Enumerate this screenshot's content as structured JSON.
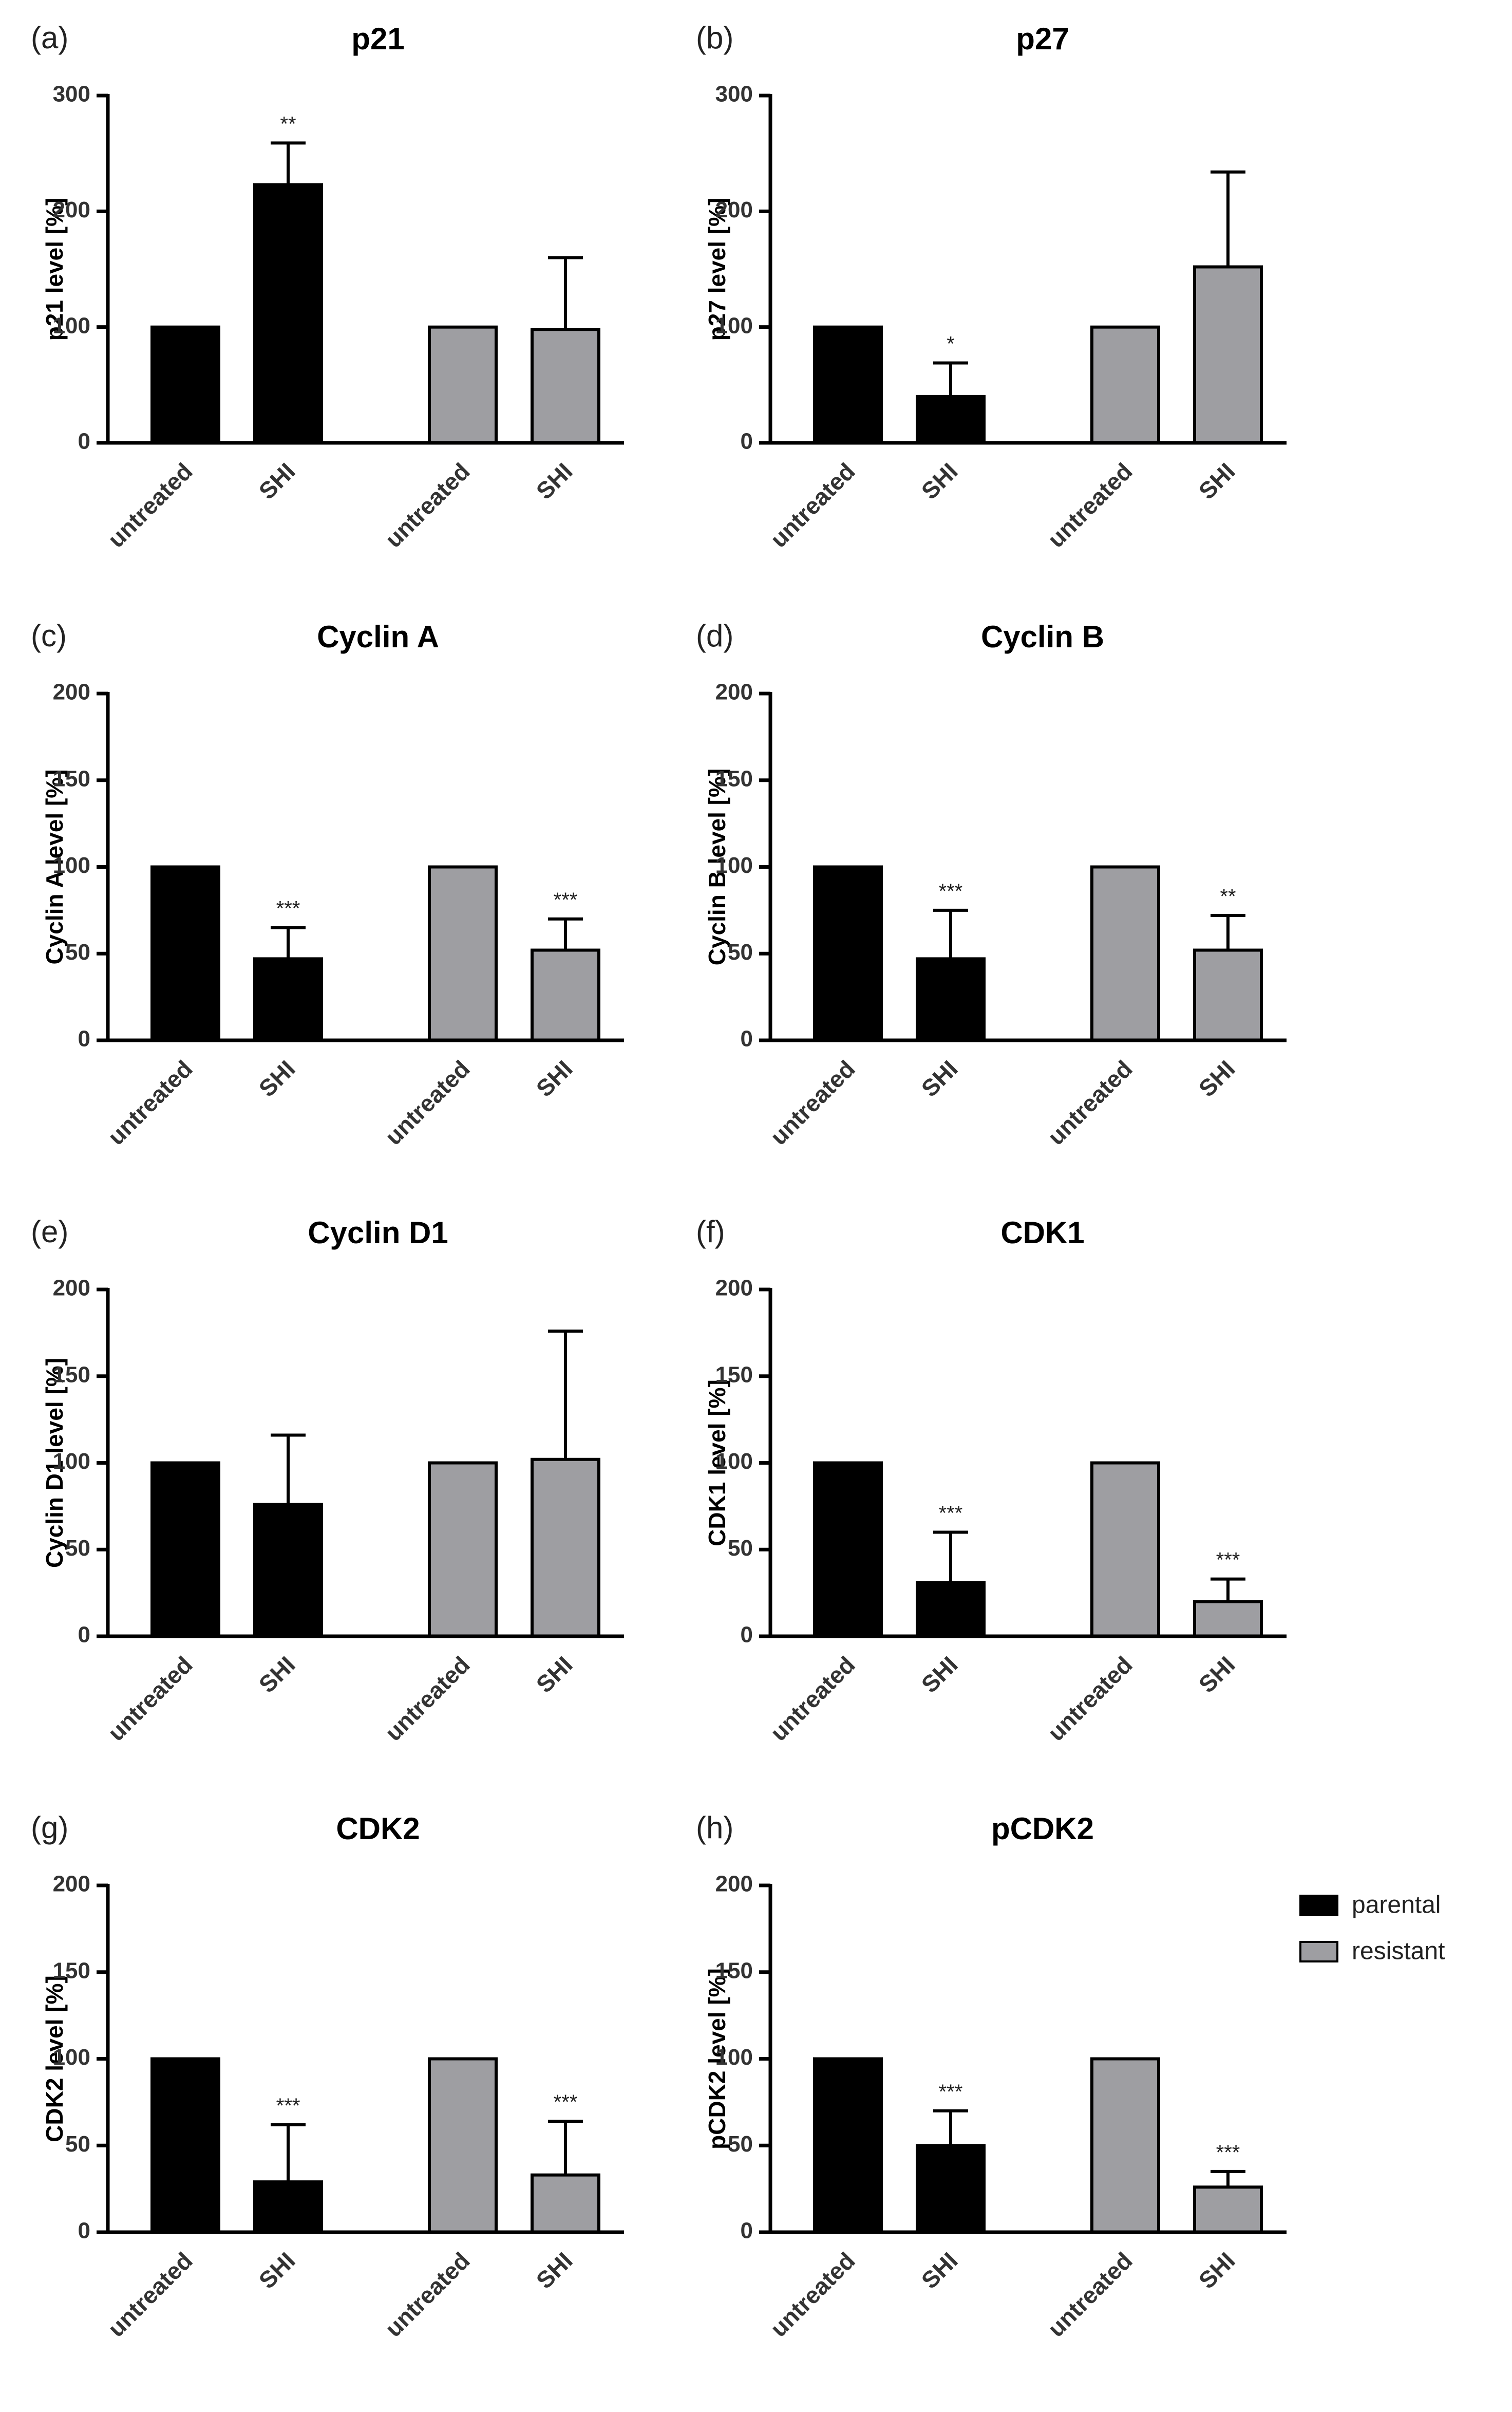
{
  "legend": {
    "items": [
      {
        "label": "parental",
        "color": "#000000"
      },
      {
        "label": "resistant",
        "color": "#9e9ea2"
      }
    ]
  },
  "colors": {
    "parental": "#000000",
    "resistant": "#9e9ea2",
    "axis": "#000000",
    "tick_text": "#333333"
  },
  "chart_data": [
    {
      "type": "bar",
      "panel": "(a)",
      "title": "p21",
      "ylabel": "p21 level [%]",
      "ylim": [
        0,
        300
      ],
      "yticks": [
        0,
        100,
        200,
        300
      ],
      "categories": [
        "untreated",
        "SHI",
        "untreated",
        "SHI"
      ],
      "groups": [
        "parental",
        "parental",
        "resistant",
        "resistant"
      ],
      "values": [
        100,
        223,
        100,
        98
      ],
      "errors": [
        0,
        36,
        0,
        62
      ],
      "significance": [
        "",
        "**",
        "",
        ""
      ]
    },
    {
      "type": "bar",
      "panel": "(b)",
      "title": "p27",
      "ylabel": "p27 level [%]",
      "ylim": [
        0,
        300
      ],
      "yticks": [
        0,
        100,
        200,
        300
      ],
      "categories": [
        "untreated",
        "SHI",
        "untreated",
        "SHI"
      ],
      "groups": [
        "parental",
        "parental",
        "resistant",
        "resistant"
      ],
      "values": [
        100,
        40,
        100,
        152
      ],
      "errors": [
        0,
        29,
        0,
        82
      ],
      "significance": [
        "",
        "*",
        "",
        ""
      ]
    },
    {
      "type": "bar",
      "panel": "(c)",
      "title": "Cyclin A",
      "ylabel": "Cyclin A level [%]",
      "ylim": [
        0,
        200
      ],
      "yticks": [
        0,
        50,
        100,
        150,
        200
      ],
      "categories": [
        "untreated",
        "SHI",
        "untreated",
        "SHI"
      ],
      "groups": [
        "parental",
        "parental",
        "resistant",
        "resistant"
      ],
      "values": [
        100,
        47,
        100,
        52
      ],
      "errors": [
        0,
        18,
        0,
        18
      ],
      "significance": [
        "",
        "***",
        "",
        "***"
      ]
    },
    {
      "type": "bar",
      "panel": "(d)",
      "title": "Cyclin B",
      "ylabel": "Cyclin B level [%]",
      "ylim": [
        0,
        200
      ],
      "yticks": [
        0,
        50,
        100,
        150,
        200
      ],
      "categories": [
        "untreated",
        "SHI",
        "untreated",
        "SHI"
      ],
      "groups": [
        "parental",
        "parental",
        "resistant",
        "resistant"
      ],
      "values": [
        100,
        47,
        100,
        52
      ],
      "errors": [
        0,
        28,
        0,
        20
      ],
      "significance": [
        "",
        "***",
        "",
        "**"
      ]
    },
    {
      "type": "bar",
      "panel": "(e)",
      "title": "Cyclin D1",
      "ylabel": "Cyclin D1 level [%]",
      "ylim": [
        0,
        200
      ],
      "yticks": [
        0,
        50,
        100,
        150,
        200
      ],
      "categories": [
        "untreated",
        "SHI",
        "untreated",
        "SHI"
      ],
      "groups": [
        "parental",
        "parental",
        "resistant",
        "resistant"
      ],
      "values": [
        100,
        76,
        100,
        102
      ],
      "errors": [
        0,
        40,
        0,
        74
      ],
      "significance": [
        "",
        "",
        "",
        ""
      ]
    },
    {
      "type": "bar",
      "panel": "(f)",
      "title": "CDK1",
      "ylabel": "CDK1 level [%]",
      "ylim": [
        0,
        200
      ],
      "yticks": [
        0,
        50,
        100,
        150,
        200
      ],
      "categories": [
        "untreated",
        "SHI",
        "untreated",
        "SHI"
      ],
      "groups": [
        "parental",
        "parental",
        "resistant",
        "resistant"
      ],
      "values": [
        100,
        31,
        100,
        20
      ],
      "errors": [
        0,
        29,
        0,
        13
      ],
      "significance": [
        "",
        "***",
        "",
        "***"
      ]
    },
    {
      "type": "bar",
      "panel": "(g)",
      "title": "CDK2",
      "ylabel": "CDK2 level [%]",
      "ylim": [
        0,
        200
      ],
      "yticks": [
        0,
        50,
        100,
        150,
        200
      ],
      "categories": [
        "untreated",
        "SHI",
        "untreated",
        "SHI"
      ],
      "groups": [
        "parental",
        "parental",
        "resistant",
        "resistant"
      ],
      "values": [
        100,
        29,
        100,
        33
      ],
      "errors": [
        0,
        33,
        0,
        31
      ],
      "significance": [
        "",
        "***",
        "",
        "***"
      ]
    },
    {
      "type": "bar",
      "panel": "(h)",
      "title": "pCDK2",
      "ylabel": "pCDK2 level [%]",
      "ylim": [
        0,
        200
      ],
      "yticks": [
        0,
        50,
        100,
        150,
        200
      ],
      "categories": [
        "untreated",
        "SHI",
        "untreated",
        "SHI"
      ],
      "groups": [
        "parental",
        "parental",
        "resistant",
        "resistant"
      ],
      "values": [
        100,
        50,
        100,
        26
      ],
      "errors": [
        0,
        20,
        0,
        9
      ],
      "significance": [
        "",
        "***",
        "",
        "***"
      ]
    }
  ]
}
